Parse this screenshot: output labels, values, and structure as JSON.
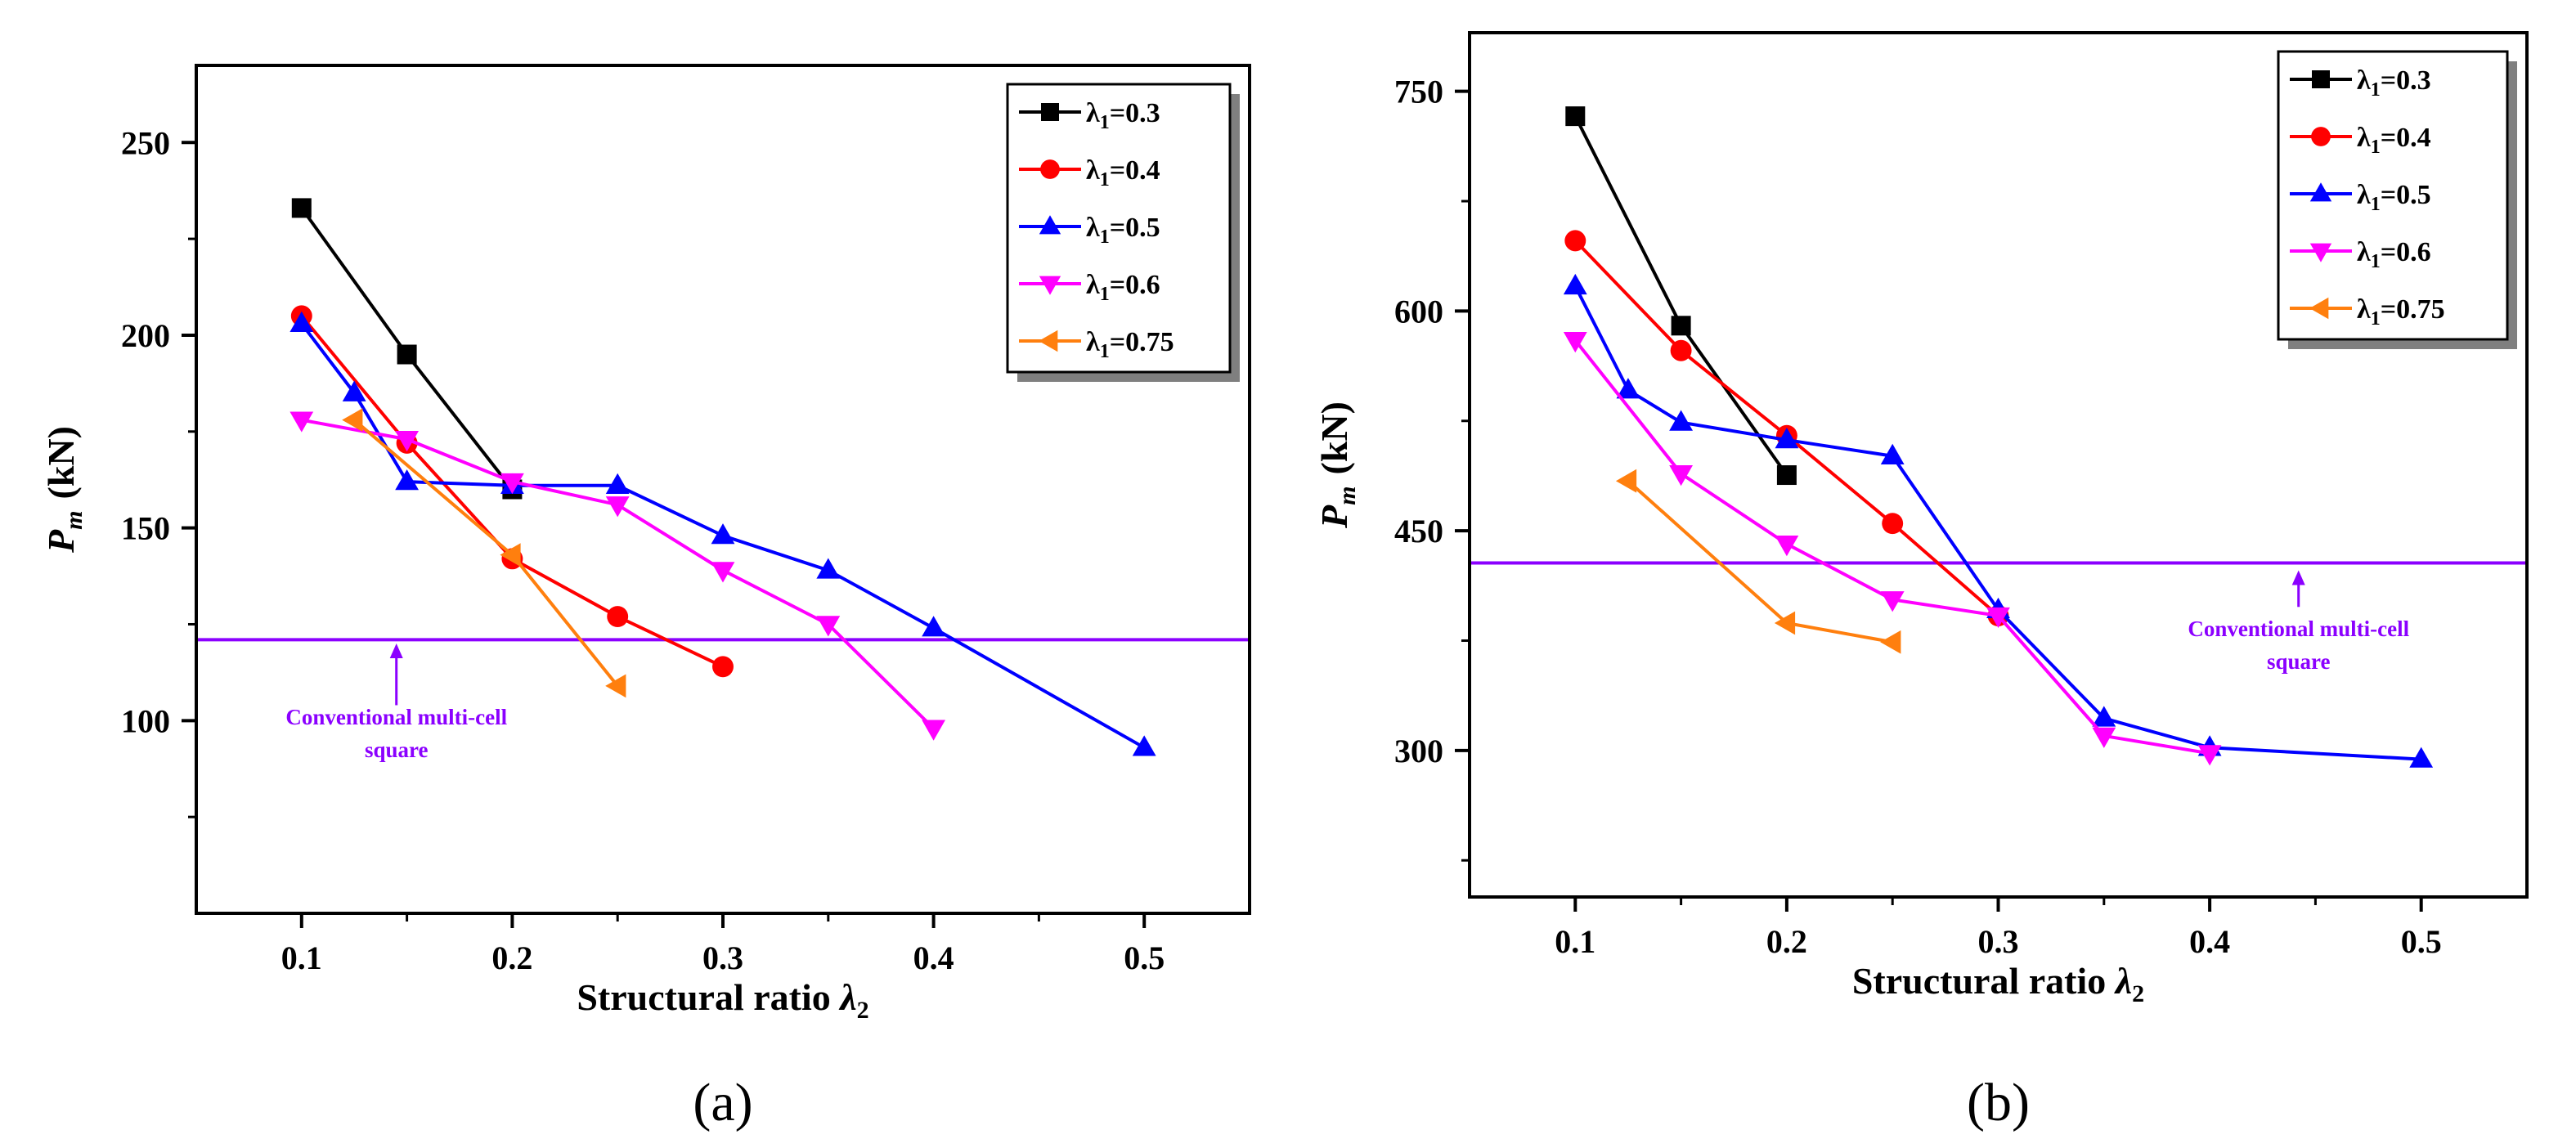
{
  "chart_data": [
    {
      "type": "line",
      "panel_label": "(a)",
      "xlabel": "Structural ratio λ2",
      "xlabel_main": "Structural ratio ",
      "xlabel_symbol": "λ",
      "xlabel_sub": "2",
      "ylabel": "Pm (kN)",
      "ylabel_main": "P",
      "ylabel_sub": "m",
      "ylabel_unit": "(kN)",
      "xlim": [
        0.05,
        0.55
      ],
      "ylim": [
        50,
        270
      ],
      "xticks": [
        0.1,
        0.2,
        0.3,
        0.4,
        0.5
      ],
      "xtick_labels": [
        "0.1",
        "0.2",
        "0.3",
        "0.4",
        "0.5"
      ],
      "xminor": [
        0.15,
        0.25,
        0.35,
        0.45
      ],
      "yticks": [
        100,
        150,
        200,
        250
      ],
      "ytick_labels": [
        "100",
        "150",
        "200",
        "250"
      ],
      "yminor": [
        75,
        125,
        175,
        225
      ],
      "legend_position": "top-right",
      "series": [
        {
          "name": "λ1=0.3",
          "legend_text": "=0.3",
          "color": "#000000",
          "marker": "square",
          "x": [
            0.1,
            0.15,
            0.2
          ],
          "y": [
            233,
            195,
            160
          ]
        },
        {
          "name": "λ1=0.4",
          "legend_text": "=0.4",
          "color": "#ff0000",
          "marker": "circle",
          "x": [
            0.1,
            0.15,
            0.2,
            0.25,
            0.3
          ],
          "y": [
            205,
            172,
            142,
            127,
            114
          ]
        },
        {
          "name": "λ1=0.5",
          "legend_text": "=0.5",
          "color": "#0000ff",
          "marker": "triangle-up",
          "x": [
            0.1,
            0.125,
            0.15,
            0.2,
            0.25,
            0.3,
            0.35,
            0.4,
            0.5
          ],
          "y": [
            203,
            185,
            162,
            161,
            161,
            148,
            139,
            124,
            93
          ]
        },
        {
          "name": "λ1=0.6",
          "legend_text": "=0.6",
          "color": "#ff00ff",
          "marker": "triangle-down",
          "x": [
            0.1,
            0.15,
            0.2,
            0.25,
            0.3,
            0.35,
            0.4
          ],
          "y": [
            178,
            173,
            162,
            156,
            139,
            125,
            98
          ]
        },
        {
          "name": "λ1=0.75",
          "legend_text": "=0.75",
          "color": "#ff7f0e",
          "marker": "triangle-left",
          "x": [
            0.125,
            0.2,
            0.25
          ],
          "y": [
            178,
            143,
            109
          ]
        }
      ],
      "reference_line": {
        "y": 121,
        "color": "#8b00ff"
      },
      "annotation": {
        "line1": "Conventional multi-cell",
        "line2": "square",
        "x": 0.145,
        "y_text": 99,
        "arrow_from_y": 104,
        "arrow_to_y": 120
      }
    },
    {
      "type": "line",
      "panel_label": "(b)",
      "xlabel": "Structural ratio λ2",
      "xlabel_main": "Structural ratio ",
      "xlabel_symbol": "λ",
      "xlabel_sub": "2",
      "ylabel": "Pm (kN)",
      "ylabel_main": "P",
      "ylabel_sub": "m",
      "ylabel_unit": "(kN)",
      "xlim": [
        0.05,
        0.55
      ],
      "ylim": [
        200,
        790
      ],
      "xticks": [
        0.1,
        0.2,
        0.3,
        0.4,
        0.5
      ],
      "xtick_labels": [
        "0.1",
        "0.2",
        "0.3",
        "0.4",
        "0.5"
      ],
      "xminor": [
        0.15,
        0.25,
        0.35,
        0.45
      ],
      "yticks": [
        300,
        450,
        600,
        750
      ],
      "ytick_labels": [
        "300",
        "450",
        "600",
        "750"
      ],
      "yminor": [
        225,
        375,
        525,
        675
      ],
      "legend_position": "top-right",
      "series": [
        {
          "name": "λ1=0.3",
          "legend_text": "=0.3",
          "color": "#000000",
          "marker": "square",
          "x": [
            0.1,
            0.15,
            0.2
          ],
          "y": [
            733,
            590,
            488
          ]
        },
        {
          "name": "λ1=0.4",
          "legend_text": "=0.4",
          "color": "#ff0000",
          "marker": "circle",
          "x": [
            0.1,
            0.15,
            0.2,
            0.25,
            0.3
          ],
          "y": [
            648,
            573,
            515,
            455,
            392
          ]
        },
        {
          "name": "λ1=0.5",
          "legend_text": "=0.5",
          "color": "#0000ff",
          "marker": "triangle-up",
          "x": [
            0.1,
            0.125,
            0.15,
            0.2,
            0.25,
            0.3,
            0.35,
            0.4,
            0.5
          ],
          "y": [
            617,
            546,
            524,
            512,
            501,
            396,
            322,
            302,
            294
          ]
        },
        {
          "name": "λ1=0.6",
          "legend_text": "=0.6",
          "color": "#ff00ff",
          "marker": "triangle-down",
          "x": [
            0.1,
            0.15,
            0.2,
            0.25,
            0.3,
            0.35,
            0.4
          ],
          "y": [
            580,
            489,
            441,
            403,
            392,
            310,
            298
          ]
        },
        {
          "name": "λ1=0.75",
          "legend_text": "=0.75",
          "color": "#ff7f0e",
          "marker": "triangle-left",
          "x": [
            0.125,
            0.2,
            0.25
          ],
          "y": [
            484,
            387,
            374
          ]
        }
      ],
      "reference_line": {
        "y": 428,
        "color": "#8b00ff"
      },
      "annotation": {
        "line1": "Conventional multi-cell",
        "line2": "square",
        "x": 0.442,
        "y_text": 378,
        "arrow_from_y": 398,
        "arrow_to_y": 423
      }
    }
  ]
}
